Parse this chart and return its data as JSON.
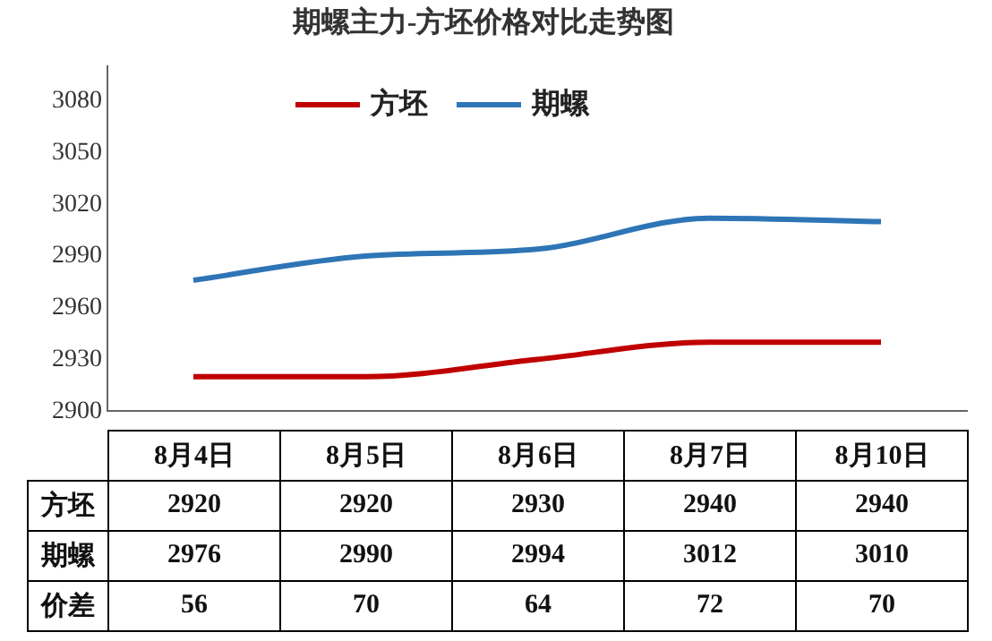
{
  "chart_data": {
    "type": "line",
    "title": "期螺主力-方坯价格对比走势图",
    "categories": [
      "8月4日",
      "8月5日",
      "8月6日",
      "8月7日",
      "8月10日"
    ],
    "series": [
      {
        "name": "方坯",
        "color": "#c00000",
        "values": [
          2920,
          2920,
          2930,
          2940,
          2940
        ]
      },
      {
        "name": "期螺",
        "color": "#2e75b6",
        "values": [
          2976,
          2990,
          2994,
          3012,
          3010
        ]
      }
    ],
    "ylim": [
      2900,
      3100
    ],
    "yticks": [
      2900,
      2930,
      2960,
      2990,
      3020,
      3050,
      3080
    ],
    "grid": false,
    "legend": "top",
    "marker": "none",
    "line_style": "solid",
    "data_labels": true,
    "annotations": [
      "价差",
      "56",
      "70",
      "64",
      "72",
      "70"
    ]
  }
}
